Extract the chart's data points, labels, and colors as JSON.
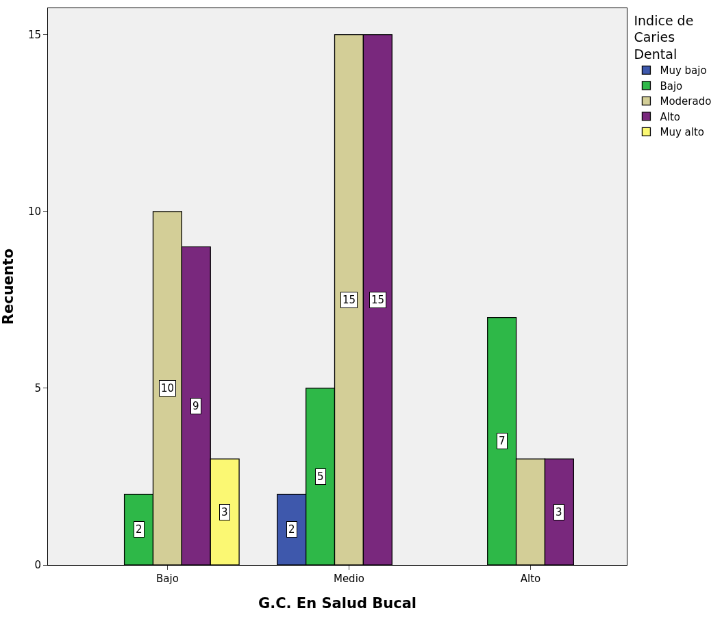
{
  "chart_data": {
    "type": "bar",
    "xlabel": "G.C. En Salud Bucal",
    "ylabel": "Recuento",
    "legend_title": "Indice de Caries Dental",
    "categories": [
      "Bajo",
      "Medio",
      "Alto"
    ],
    "series": [
      {
        "name": "Muy bajo",
        "color": "#3e58ac",
        "values": [
          null,
          2,
          null
        ],
        "value_labels": [
          null,
          "2",
          null
        ]
      },
      {
        "name": "Bajo",
        "color": "#2eb848",
        "values": [
          2,
          5,
          7
        ],
        "value_labels": [
          "2",
          "5",
          "7"
        ]
      },
      {
        "name": "Moderado",
        "color": "#d3ce97",
        "values": [
          10,
          15,
          3
        ],
        "value_labels": [
          "10",
          "15",
          null
        ]
      },
      {
        "name": "Alto",
        "color": "#79287d",
        "values": [
          9,
          15,
          3
        ],
        "value_labels": [
          "9",
          "15",
          "3"
        ]
      },
      {
        "name": "Muy alto",
        "color": "#fbf873",
        "values": [
          3,
          null,
          null
        ],
        "value_labels": [
          "3",
          null,
          null
        ]
      }
    ],
    "ylim": [
      0,
      15.75
    ],
    "yticks": [
      0,
      5,
      10,
      15
    ],
    "grid": false,
    "legend": "top right"
  }
}
